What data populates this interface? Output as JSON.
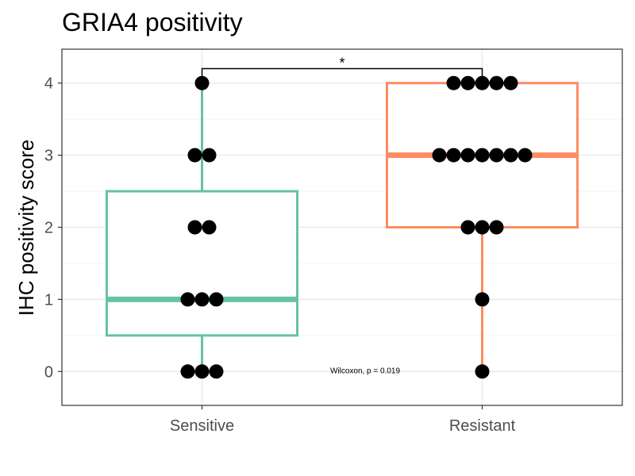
{
  "chart_data": {
    "type": "box",
    "title": "GRIA4 positivity",
    "xlabel": "",
    "ylabel": "IHC positivity score",
    "ylim": [
      -0.47,
      4.47
    ],
    "yticks": [
      "0",
      "1",
      "2",
      "3",
      "4"
    ],
    "categories": [
      "Sensitive",
      "Resistant"
    ],
    "series": [
      {
        "category": "Sensitive",
        "color": "#66c2a5",
        "box": {
          "min": 0,
          "q1": 0.5,
          "median": 1,
          "q3": 2.5,
          "max": 4
        },
        "points": [
          0,
          0,
          0,
          1,
          1,
          1,
          2,
          2,
          3,
          3,
          4
        ]
      },
      {
        "category": "Resistant",
        "color": "#fc8d62",
        "box": {
          "min": 0,
          "q1": 2,
          "median": 3,
          "q3": 4,
          "max": 4
        },
        "points": [
          0,
          1,
          2,
          2,
          2,
          3,
          3,
          3,
          3,
          3,
          3,
          3,
          4,
          4,
          4,
          4,
          4
        ]
      }
    ],
    "annotations": {
      "significance": "*",
      "test": "Wilcoxon, p = 0.019"
    },
    "grid": true,
    "legend": "none"
  }
}
